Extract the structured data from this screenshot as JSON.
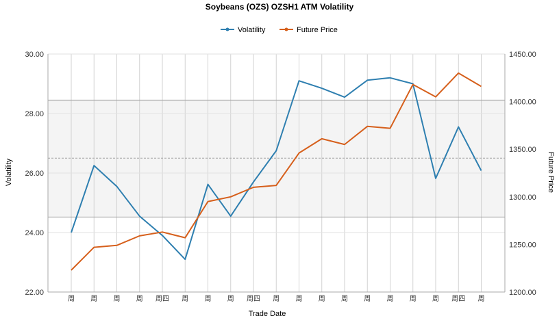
{
  "chart_data": {
    "type": "line",
    "title": "Soybeans (OZS) OZSH1 ATM Volatility",
    "xlabel": "Trade Date",
    "ylabel": "Volatility",
    "y2label": "Future Price",
    "categories": [
      "周",
      "周",
      "周",
      "周",
      "周四",
      "周",
      "周",
      "周",
      "周四",
      "周",
      "周",
      "周",
      "周",
      "周",
      "周",
      "周",
      "周",
      "周四",
      "周"
    ],
    "ylim": [
      22,
      30
    ],
    "y2lim": [
      1200,
      1450
    ],
    "yticks": [
      "22.00",
      "24.00",
      "26.00",
      "28.00",
      "30.00"
    ],
    "y2ticks": [
      "1200.00",
      "1250.00",
      "1300.00",
      "1350.00",
      "1400.00",
      "1450.00"
    ],
    "band": {
      "upper": 28.45,
      "lower": 24.52,
      "mean": 26.5
    },
    "grid": true,
    "legend_position": "top",
    "series": [
      {
        "name": "Volatility",
        "axis": "left",
        "color": "#2e7fb0",
        "values": [
          24.0,
          26.25,
          25.55,
          24.55,
          23.9,
          23.1,
          25.62,
          24.55,
          25.7,
          26.75,
          29.1,
          28.85,
          28.55,
          29.12,
          29.2,
          29.0,
          25.82,
          27.55,
          26.08
        ]
      },
      {
        "name": "Future Price",
        "axis": "right",
        "color": "#d65f1b",
        "values": [
          1223,
          1247,
          1249,
          1259,
          1263,
          1257,
          1295,
          1300,
          1310,
          1312,
          1346,
          1361,
          1355,
          1374,
          1372,
          1418,
          1405,
          1430,
          1416
        ]
      }
    ]
  }
}
